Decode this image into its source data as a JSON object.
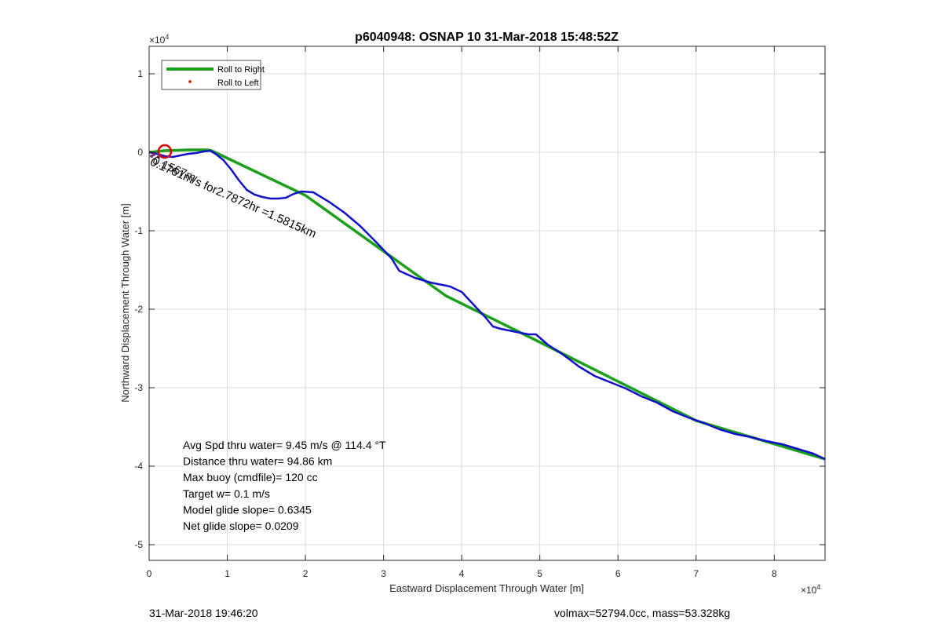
{
  "chart_data": {
    "type": "line",
    "title": "p6040948: OSNAP 10 31-Mar-2018 15:48:52Z",
    "xlabel": "Eastward Displacement Through Water [m]",
    "ylabel": "Northward Displacement Through Water [m]",
    "x_exponent": "×10",
    "x_exponent_power": "4",
    "y_exponent": "×10",
    "y_exponent_power": "4",
    "xlim": [
      0,
      86500
    ],
    "ylim": [
      -52000,
      13500
    ],
    "grid": true,
    "legend_position": "top-left",
    "x_ticks": [
      0,
      10000,
      20000,
      30000,
      40000,
      50000,
      60000,
      70000,
      80000
    ],
    "x_tick_labels": [
      "0",
      "1",
      "2",
      "3",
      "4",
      "5",
      "6",
      "7",
      "8"
    ],
    "y_ticks": [
      10000,
      0,
      -10000,
      -20000,
      -30000,
      -40000,
      -50000
    ],
    "y_tick_labels": [
      "1",
      "0",
      "-1",
      "-2",
      "-3",
      "-4",
      "-5"
    ],
    "legend": [
      {
        "label": "Roll to Right",
        "color": "#1aa01a",
        "style": "line"
      },
      {
        "label": "Roll to Left",
        "color": "#e00000",
        "style": "dot"
      }
    ],
    "series": [
      {
        "name": "Roll to Right",
        "color": "#1aa01a",
        "x": [
          0,
          2000,
          5000,
          7500,
          8000,
          20000,
          38000,
          50000,
          70000,
          86500
        ],
        "y": [
          0,
          200,
          300,
          300,
          200,
          -5500,
          -18300,
          -24200,
          -34200,
          -39100
        ]
      },
      {
        "color": "#1010cc",
        "x": [
          0,
          1000,
          2000,
          3000,
          4000,
          5000,
          6000,
          7000,
          7800,
          8500,
          9500,
          10500,
          11500,
          12500,
          13500,
          14500,
          15500,
          16500,
          17500,
          18500,
          19500,
          21000,
          23000,
          25000,
          27000,
          29000,
          31000,
          32000,
          34000,
          36000,
          37500,
          38500,
          40000,
          41500,
          43000,
          44000,
          45000,
          46000,
          47500,
          48500,
          49500,
          51000,
          53000,
          55000,
          57000,
          59000,
          61000,
          63000,
          65000,
          67000,
          69000,
          71000,
          73000,
          75000,
          77000,
          79000,
          81000,
          83000,
          85000,
          86500
        ],
        "y": [
          0,
          -200,
          -500,
          -600,
          -400,
          -200,
          -100,
          100,
          200,
          -200,
          -1000,
          -2200,
          -3600,
          -4800,
          -5400,
          -5700,
          -5900,
          -5900,
          -5800,
          -5300,
          -5000,
          -5100,
          -6300,
          -7700,
          -9400,
          -11400,
          -13500,
          -15100,
          -16000,
          -16600,
          -16900,
          -17100,
          -17800,
          -19400,
          -21000,
          -22200,
          -22500,
          -22700,
          -23000,
          -23200,
          -23200,
          -24500,
          -25800,
          -27300,
          -28500,
          -29300,
          -30100,
          -31100,
          -31900,
          -33000,
          -33800,
          -34500,
          -35300,
          -35900,
          -36300,
          -36800,
          -37200,
          -37800,
          -38400,
          -39100
        ]
      }
    ],
    "annotations": [
      {
        "text": "Avg Spd thru water=  9.45 m/s @ 114.4 °T"
      },
      {
        "text": "Distance thru water= 94.86 km"
      },
      {
        "text": "Max buoy (cmdfile)= 120 cc"
      },
      {
        "text": "Target w= 0.1 m/s"
      },
      {
        "text": "Model glide slope= 0.6345"
      },
      {
        "text": "Net glide slope= 0.0209"
      }
    ],
    "rotated_label": {
      "text": "0.1761m/s for2.7872hr =1.5815km",
      "overlay": "0.1567m"
    },
    "marker_circle": {
      "x": 2000,
      "y": 100,
      "color": "#dd0000"
    }
  },
  "footer": {
    "left": "31-Mar-2018 19:46:20",
    "right": "volmax=52794.0cc, mass=53.328kg"
  }
}
